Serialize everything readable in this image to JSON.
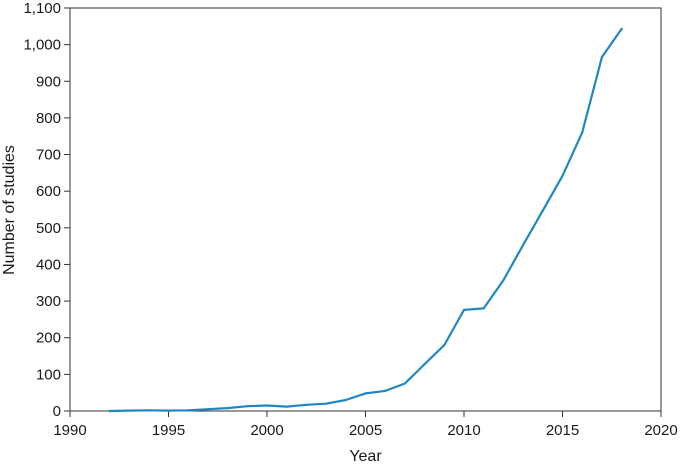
{
  "chart_data": {
    "type": "line",
    "title": "",
    "xlabel": "Year",
    "ylabel": "Number of studies",
    "xlim": [
      1990,
      2020
    ],
    "ylim": [
      0,
      1100
    ],
    "x_ticks": [
      1990,
      1995,
      2000,
      2005,
      2010,
      2015,
      2020
    ],
    "x_tick_labels": [
      "1990",
      "1995",
      "2000",
      "2005",
      "2010",
      "2015",
      "2020"
    ],
    "y_ticks": [
      0,
      100,
      200,
      300,
      400,
      500,
      600,
      700,
      800,
      900,
      1000,
      1100
    ],
    "y_tick_labels": [
      "0",
      "100",
      "200",
      "300",
      "400",
      "500",
      "600",
      "700",
      "800",
      "900",
      "1,000",
      "1,100"
    ],
    "grid": false,
    "series": [
      {
        "color": "#1f87c2",
        "x": [
          1992,
          1993,
          1994,
          1995,
          1996,
          1997,
          1998,
          1999,
          2000,
          2001,
          2002,
          2003,
          2004,
          2005,
          2006,
          2007,
          2008,
          2009,
          2010,
          2011,
          2012,
          2013,
          2014,
          2015,
          2016,
          2017,
          2018
        ],
        "y": [
          0,
          1,
          2,
          1,
          2,
          5,
          8,
          13,
          15,
          12,
          17,
          20,
          30,
          48,
          55,
          75,
          128,
          180,
          276,
          280,
          357,
          453,
          547,
          642,
          760,
          966,
          1043
        ]
      }
    ]
  }
}
